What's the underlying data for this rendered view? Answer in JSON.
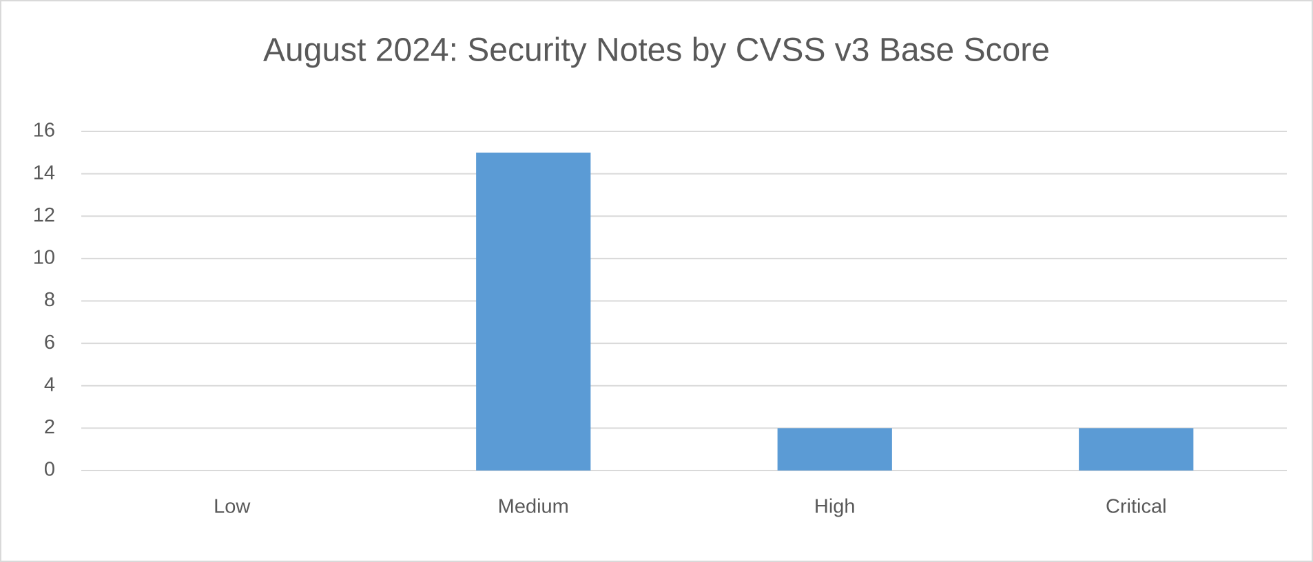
{
  "chart_data": {
    "type": "bar",
    "title": "August 2024: Security Notes by CVSS v3 Base Score",
    "categories": [
      "Low",
      "Medium",
      "High",
      "Critical"
    ],
    "values": [
      0,
      15,
      2,
      2
    ],
    "color": "#5b9bd5",
    "ylim": [
      0,
      16
    ],
    "yticks": [
      0,
      2,
      4,
      6,
      8,
      10,
      12,
      14,
      16
    ],
    "grid": true
  }
}
